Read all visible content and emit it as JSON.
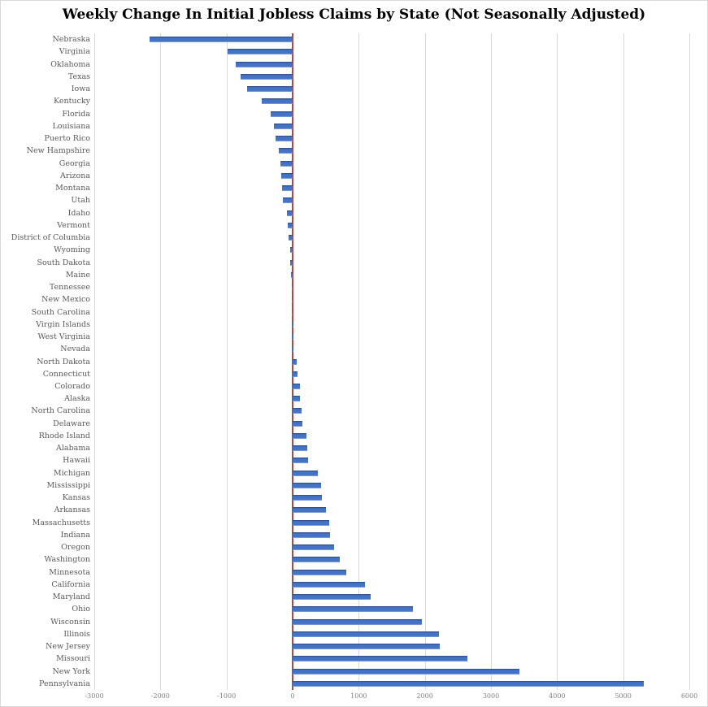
{
  "title": "Weekly Change In Initial Jobless Claims by State (Not Seasonally Adjusted)",
  "chart_data": {
    "type": "bar",
    "orientation": "horizontal",
    "title": "Weekly Change In Initial Jobless Claims by State (Not Seasonally Adjusted)",
    "xlabel": "",
    "ylabel": "",
    "xlim": [
      -3000,
      6000
    ],
    "x_ticks": [
      -3000,
      -2000,
      -1000,
      0,
      1000,
      2000,
      3000,
      4000,
      5000,
      6000
    ],
    "grid": true,
    "legend": false,
    "zero_reference_line": 0,
    "categories": [
      "Nebraska",
      "Virginia",
      "Oklahoma",
      "Texas",
      "Iowa",
      "Kentucky",
      "Florida",
      "Louisiana",
      "Puerto Rico",
      "New Hampshire",
      "Georgia",
      "Arizona",
      "Montana",
      "Utah",
      "Idaho",
      "Vermont",
      "District of Columbia",
      "Wyoming",
      "South Dakota",
      "Maine",
      "Tennessee",
      "New Mexico",
      "South Carolina",
      "Virgin Islands",
      "West Virginia",
      "Nevada",
      "North Dakota",
      "Connecticut",
      "Colorado",
      "Alaska",
      "North Carolina",
      "Delaware",
      "Rhode Island",
      "Alabama",
      "Hawaii",
      "Michigan",
      "Mississippi",
      "Kansas",
      "Arkansas",
      "Massachusetts",
      "Indiana",
      "Oregon",
      "Washington",
      "Minnesota",
      "California",
      "Maryland",
      "Ohio",
      "Wisconsin",
      "Illinois",
      "New Jersey",
      "Missouri",
      "New York",
      "Pennsylvania"
    ],
    "values": [
      -2165,
      -985,
      -860,
      -790,
      -690,
      -470,
      -330,
      -285,
      -260,
      -210,
      -185,
      -175,
      -165,
      -150,
      -85,
      -75,
      -65,
      -40,
      -35,
      -25,
      -18,
      -12,
      -8,
      -5,
      -3,
      -1,
      65,
      75,
      105,
      110,
      130,
      150,
      205,
      220,
      230,
      380,
      435,
      445,
      505,
      555,
      565,
      630,
      715,
      815,
      1090,
      1185,
      1825,
      1960,
      2210,
      2225,
      2640,
      3430,
      5310
    ],
    "colors": {
      "bar": "#4472C4",
      "bar_top_edge": "#2F5597",
      "bar_bottom_edge": "#8FAADC",
      "zero_line": "#AE4A44",
      "gridline": "#D9D9D9",
      "category_label": "#595959",
      "tick_label": "#7F7F7F",
      "title": "#000000",
      "background": "#FFFFFF"
    }
  }
}
